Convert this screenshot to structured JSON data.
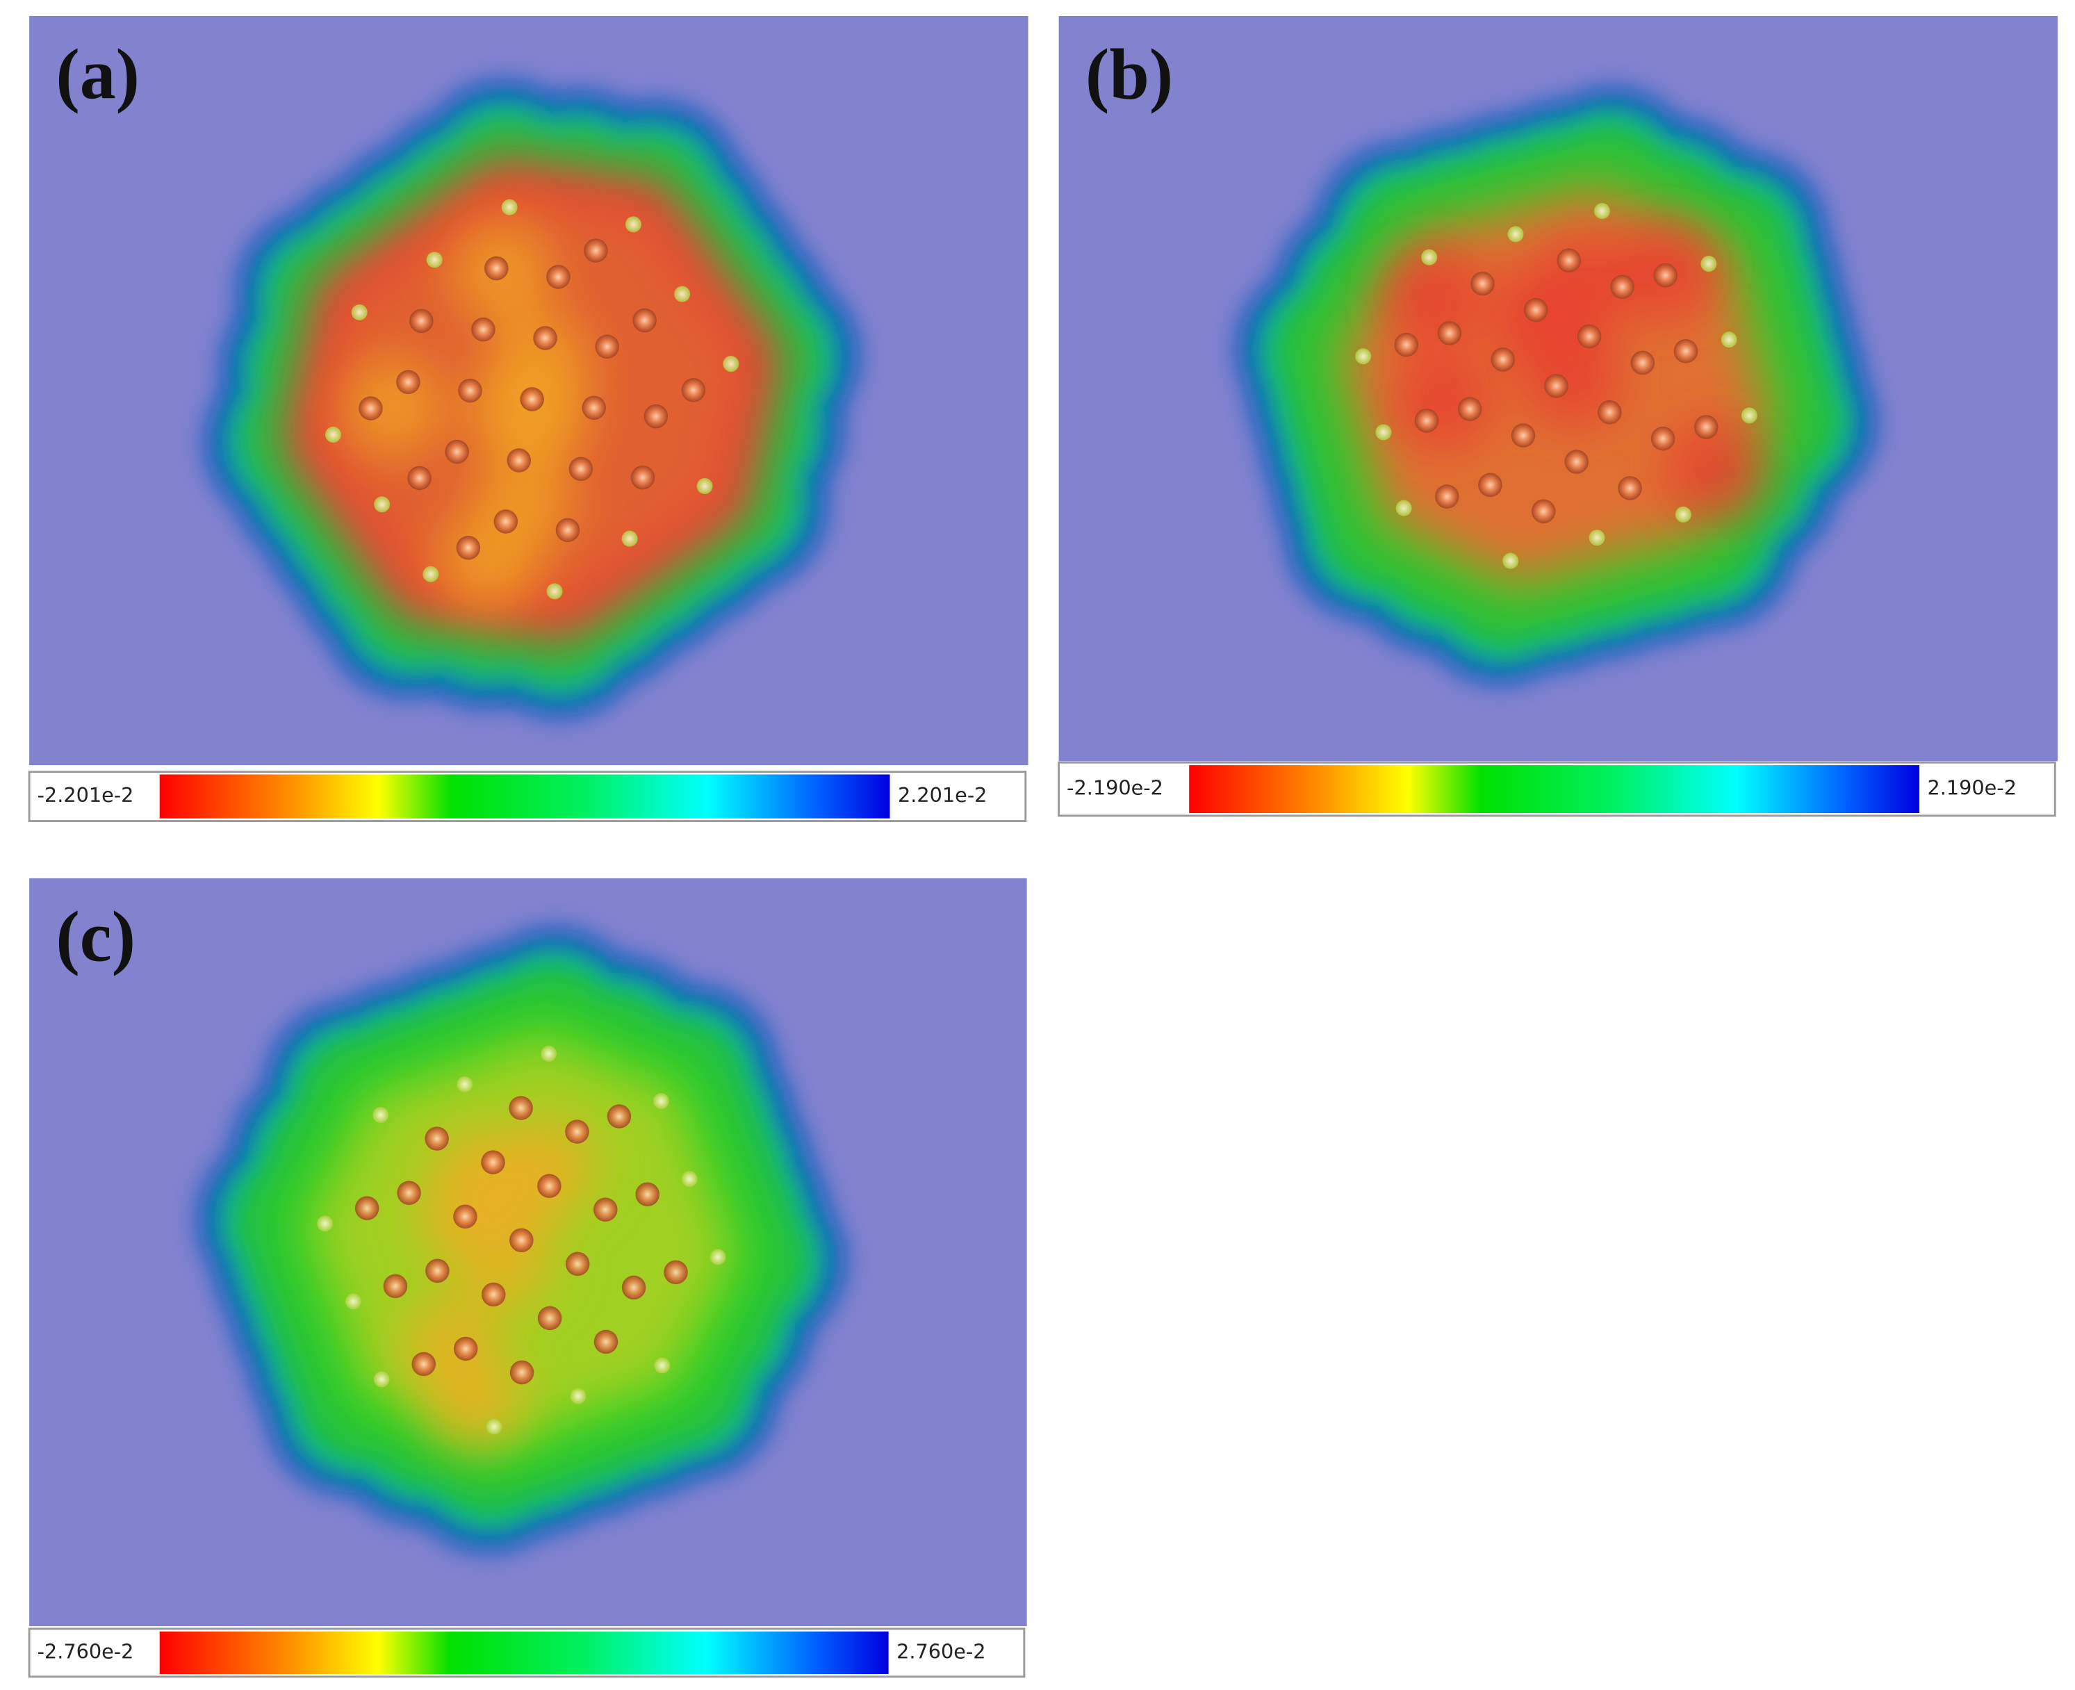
{
  "panels": [
    {
      "label": "(a)",
      "scale_min": "-2.201e-2",
      "scale_max": "2.201e-2"
    },
    {
      "label": "(b)",
      "scale_min": "-2.190e-2",
      "scale_max": "2.190e-2"
    },
    {
      "label": "(c)",
      "scale_min": "-2.760e-2",
      "scale_max": "2.760e-2"
    }
  ]
}
